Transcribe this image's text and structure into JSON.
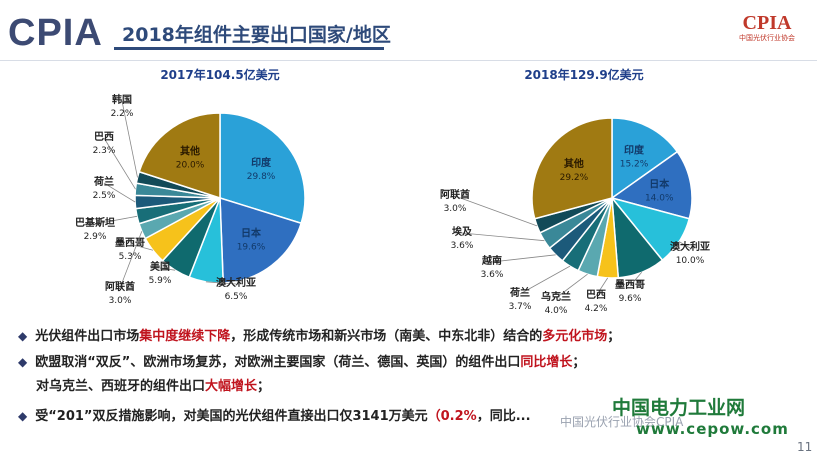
{
  "header": {
    "brand": "CPIA",
    "title": "2018年组件主要出口国家/地区"
  },
  "logo": {
    "text": "CPIA",
    "subtitle": "中国光伏行业协会"
  },
  "chart_data": [
    {
      "type": "pie",
      "title": "2017年104.5亿美元",
      "slices": [
        {
          "label": "印度",
          "value": 29.8,
          "pct": "29.8%",
          "color": "#2aa1d8"
        },
        {
          "label": "日本",
          "value": 19.6,
          "pct": "19.6%",
          "color": "#2f6fc0"
        },
        {
          "label": "澳大利亚",
          "value": 6.5,
          "pct": "6.5%",
          "color": "#27c0da"
        },
        {
          "label": "美国",
          "value": 5.9,
          "pct": "5.9%",
          "color": "#0f6a6e"
        },
        {
          "label": "墨西哥",
          "value": 5.3,
          "pct": "5.3%",
          "color": "#f6c21b"
        },
        {
          "label": "阿联酋",
          "value": 3.0,
          "pct": "3.0%",
          "color": "#5aa8b0"
        },
        {
          "label": "巴基斯坦",
          "value": 2.9,
          "pct": "2.9%",
          "color": "#186e78"
        },
        {
          "label": "荷兰",
          "value": 2.5,
          "pct": "2.5%",
          "color": "#1c5a7a"
        },
        {
          "label": "巴西",
          "value": 2.3,
          "pct": "2.3%",
          "color": "#3a8898"
        },
        {
          "label": "韩国",
          "value": 2.2,
          "pct": "2.2%",
          "color": "#124a58"
        },
        {
          "label": "其他",
          "value": 20.0,
          "pct": "20.0%",
          "color": "#a07a12"
        }
      ]
    },
    {
      "type": "pie",
      "title": "2018年129.9亿美元",
      "slices": [
        {
          "label": "印度",
          "value": 15.2,
          "pct": "15.2%",
          "color": "#2aa1d8"
        },
        {
          "label": "日本",
          "value": 14.0,
          "pct": "14.0%",
          "color": "#2f6fc0"
        },
        {
          "label": "澳大利亚",
          "value": 10.0,
          "pct": "10.0%",
          "color": "#27c0da"
        },
        {
          "label": "墨西哥",
          "value": 9.6,
          "pct": "9.6%",
          "color": "#0f6a6e"
        },
        {
          "label": "巴西",
          "value": 4.2,
          "pct": "4.2%",
          "color": "#f6c21b"
        },
        {
          "label": "乌克兰",
          "value": 4.0,
          "pct": "4.0%",
          "color": "#5aa8b0"
        },
        {
          "label": "荷兰",
          "value": 3.7,
          "pct": "3.7%",
          "color": "#186e78"
        },
        {
          "label": "越南",
          "value": 3.6,
          "pct": "3.6%",
          "color": "#1c5a7a"
        },
        {
          "label": "埃及",
          "value": 3.6,
          "pct": "3.6%",
          "color": "#3a8898"
        },
        {
          "label": "阿联酋",
          "value": 3.0,
          "pct": "3.0%",
          "color": "#124a58"
        },
        {
          "label": "其他",
          "value": 29.2,
          "pct": "29.2%",
          "color": "#a07a12"
        }
      ]
    }
  ],
  "bullets": [
    {
      "parts": [
        "光伏组件出口市场",
        "集中度继续下降",
        "，形成传统市场和新兴市场（南美、中东北非）结合的",
        "多元化市场",
        "；"
      ]
    },
    {
      "parts": [
        "欧盟取消“双反”、欧洲市场复苏，对欧洲主要国家（荷兰、德国、英国）的组件出口",
        "同比增长",
        "；"
      ]
    },
    {
      "parts": [
        "对乌克兰、西班牙的组件出口",
        "大幅增长",
        "；"
      ]
    },
    {
      "parts": [
        "受“201”双反措施影响，对美国的光伏组件直接出口仅3141万美元",
        "（0.2%",
        "，同比..."
      ]
    }
  ],
  "watermark": {
    "cn": "中国电力工业网",
    "url": "www.cepow.com",
    "source": "中国光伏行业协会CPIA"
  },
  "page_number": "11"
}
